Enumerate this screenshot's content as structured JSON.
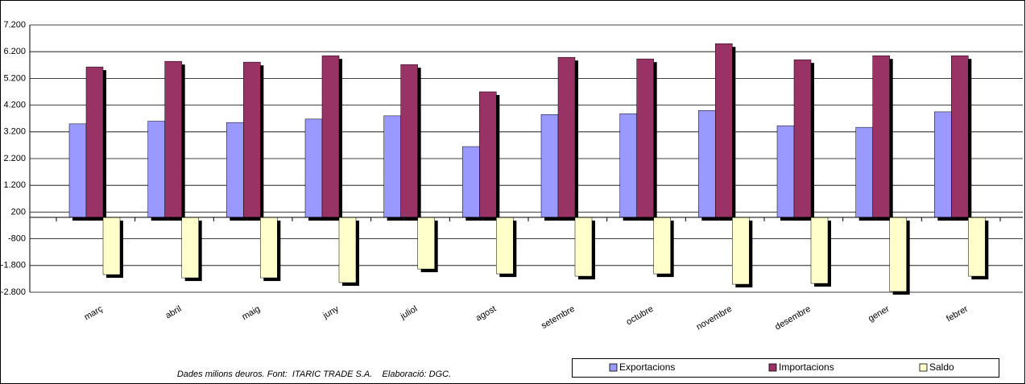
{
  "chart_data": {
    "type": "bar",
    "categories": [
      "març",
      "abril",
      "maig",
      "juny",
      "juliol",
      "agost",
      "setembre",
      "octubre",
      "novembre",
      "desembre",
      "gener",
      "febrer"
    ],
    "series": [
      {
        "name": "Exportacions",
        "color": "#9999ff",
        "values": [
          3500,
          3600,
          3550,
          3680,
          3800,
          2650,
          3850,
          3880,
          4000,
          3430,
          3370,
          3950
        ]
      },
      {
        "name": "Importacions",
        "color": "#993366",
        "values": [
          5630,
          5840,
          5810,
          6050,
          5720,
          4700,
          5990,
          5930,
          6500,
          5900,
          6050,
          6050
        ]
      },
      {
        "name": "Saldo",
        "color": "#ffffcc",
        "values": [
          -2140,
          -2260,
          -2260,
          -2440,
          -1930,
          -2110,
          -2200,
          -2110,
          -2500,
          -2470,
          -2770,
          -2200
        ]
      }
    ],
    "ylim": [
      -2800,
      7200
    ],
    "yticks": [
      {
        "value": -2800,
        "label": "-2.800"
      },
      {
        "value": -1800,
        "label": "-1.800"
      },
      -800,
      200,
      {
        "value": 1200,
        "label": "1.200"
      },
      {
        "value": 2200,
        "label": "2.200"
      },
      {
        "value": 3200,
        "label": "3.200"
      },
      {
        "value": 4200,
        "label": "4.200"
      },
      {
        "value": 5200,
        "label": "5.200"
      },
      {
        "value": 6200,
        "label": "6.200"
      },
      {
        "value": 7200,
        "label": "7.200"
      }
    ],
    "grid": true,
    "legend": "bottom",
    "annotation": "Dades milions deuros. Font:  ITARIC TRADE S.A.    Elaboració: DGC."
  }
}
